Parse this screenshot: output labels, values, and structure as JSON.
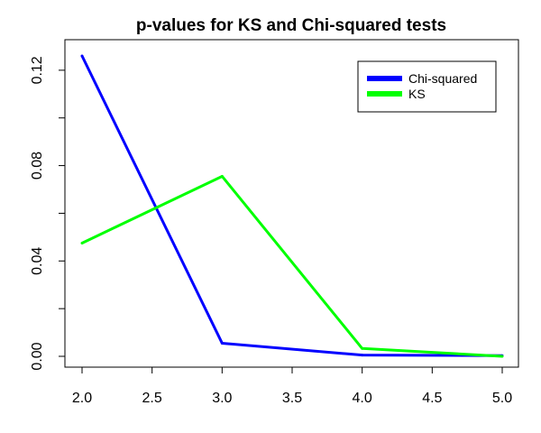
{
  "chart_data": {
    "type": "line",
    "title": "p-values for KS and Chi-squared tests",
    "xlabel": "",
    "ylabel": "",
    "x": [
      2,
      3,
      4,
      5
    ],
    "xlim": [
      2,
      5
    ],
    "ylim": [
      0,
      0.126
    ],
    "x_ticks": [
      "2.0",
      "2.5",
      "3.0",
      "3.5",
      "4.0",
      "4.5",
      "5.0"
    ],
    "x_tick_values": [
      2.0,
      2.5,
      3.0,
      3.5,
      4.0,
      4.5,
      5.0
    ],
    "y_ticks": [
      "0.00",
      "0.04",
      "0.08",
      "0.12"
    ],
    "y_tick_values": [
      0.0,
      0.04,
      0.08,
      0.12
    ],
    "y_minor_tick_values": [
      0.02,
      0.06,
      0.1
    ],
    "grid": false,
    "legend_position": "top-right",
    "series": [
      {
        "name": "Chi-squared",
        "color": "#0000ff",
        "values": [
          0.126,
          0.0055,
          0.0005,
          0.0003
        ]
      },
      {
        "name": "KS",
        "color": "#00ff00",
        "values": [
          0.0475,
          0.0755,
          0.0033,
          0.0
        ]
      }
    ]
  }
}
